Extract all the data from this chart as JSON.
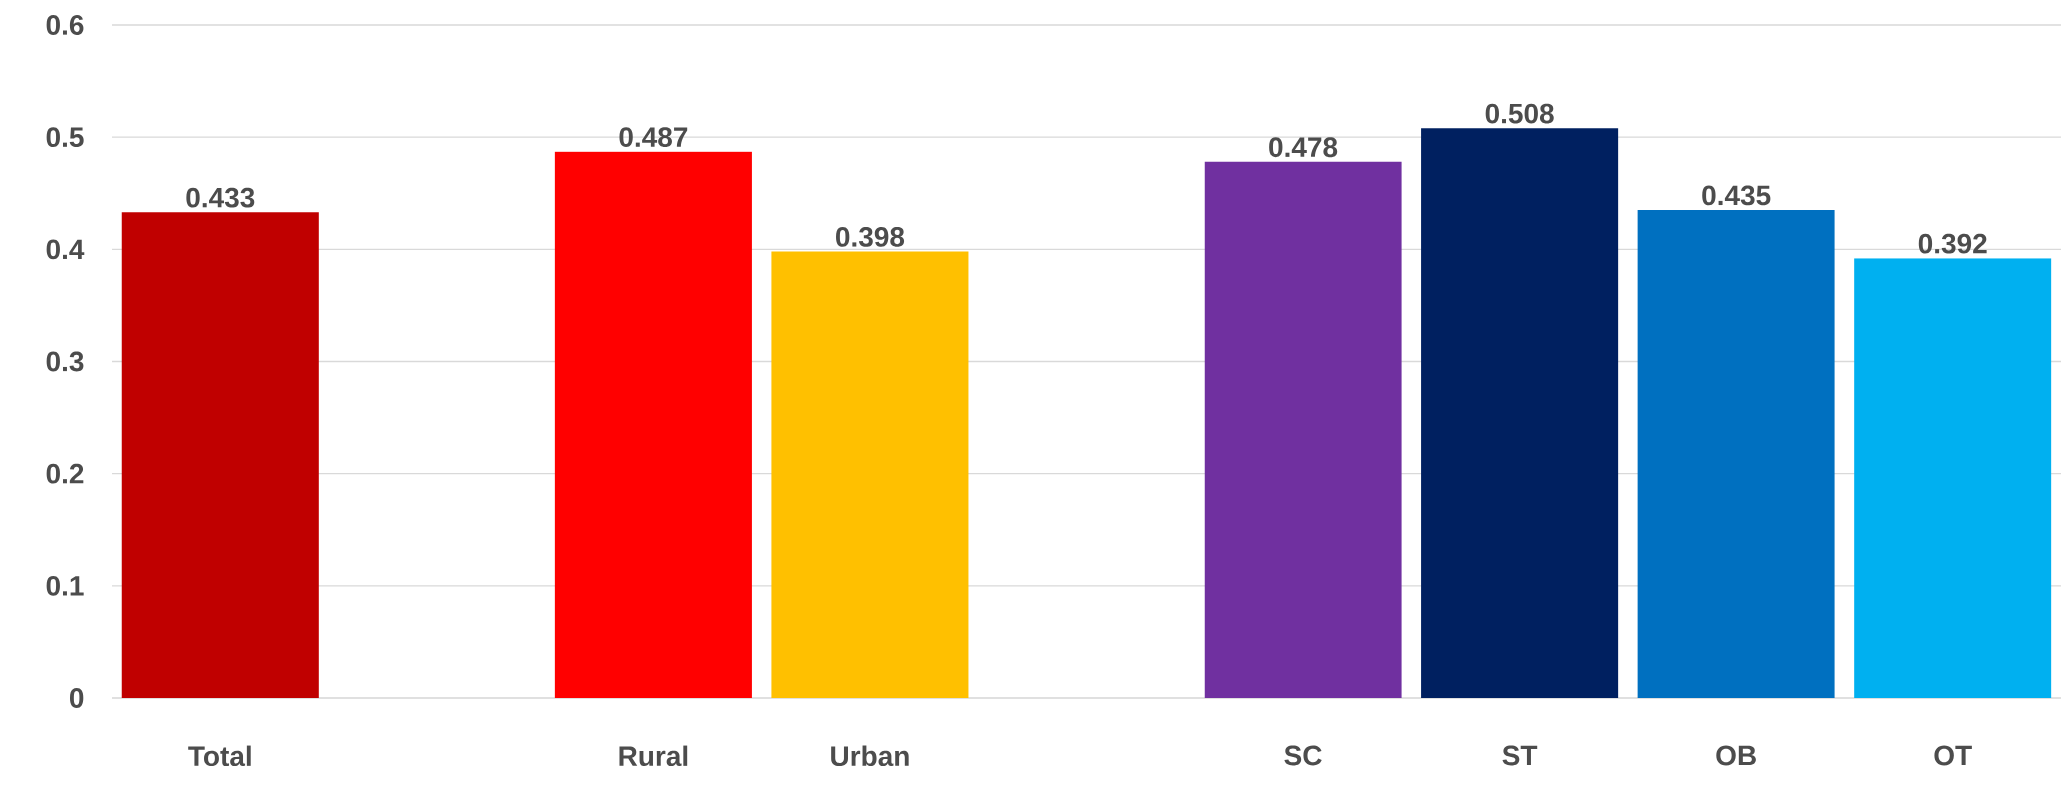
{
  "chart_data": {
    "type": "bar",
    "categories": [
      "Total",
      null,
      "Rural",
      "Urban",
      null,
      "SC",
      "ST",
      "OB",
      "OT"
    ],
    "values": [
      0.433,
      null,
      0.487,
      0.398,
      null,
      0.478,
      0.508,
      0.435,
      0.392
    ],
    "colors": [
      "#c00000",
      "#ffffff",
      "#ff0000",
      "#ffc000",
      "#ffffff",
      "#7030a0",
      "#002060",
      "#0070c0",
      "#00b0f0"
    ],
    "ylim": [
      0,
      0.6
    ],
    "yticks": [
      0,
      0.1,
      0.2,
      0.3,
      0.4,
      0.5,
      0.6
    ],
    "grid": "y",
    "data_labels": true
  }
}
